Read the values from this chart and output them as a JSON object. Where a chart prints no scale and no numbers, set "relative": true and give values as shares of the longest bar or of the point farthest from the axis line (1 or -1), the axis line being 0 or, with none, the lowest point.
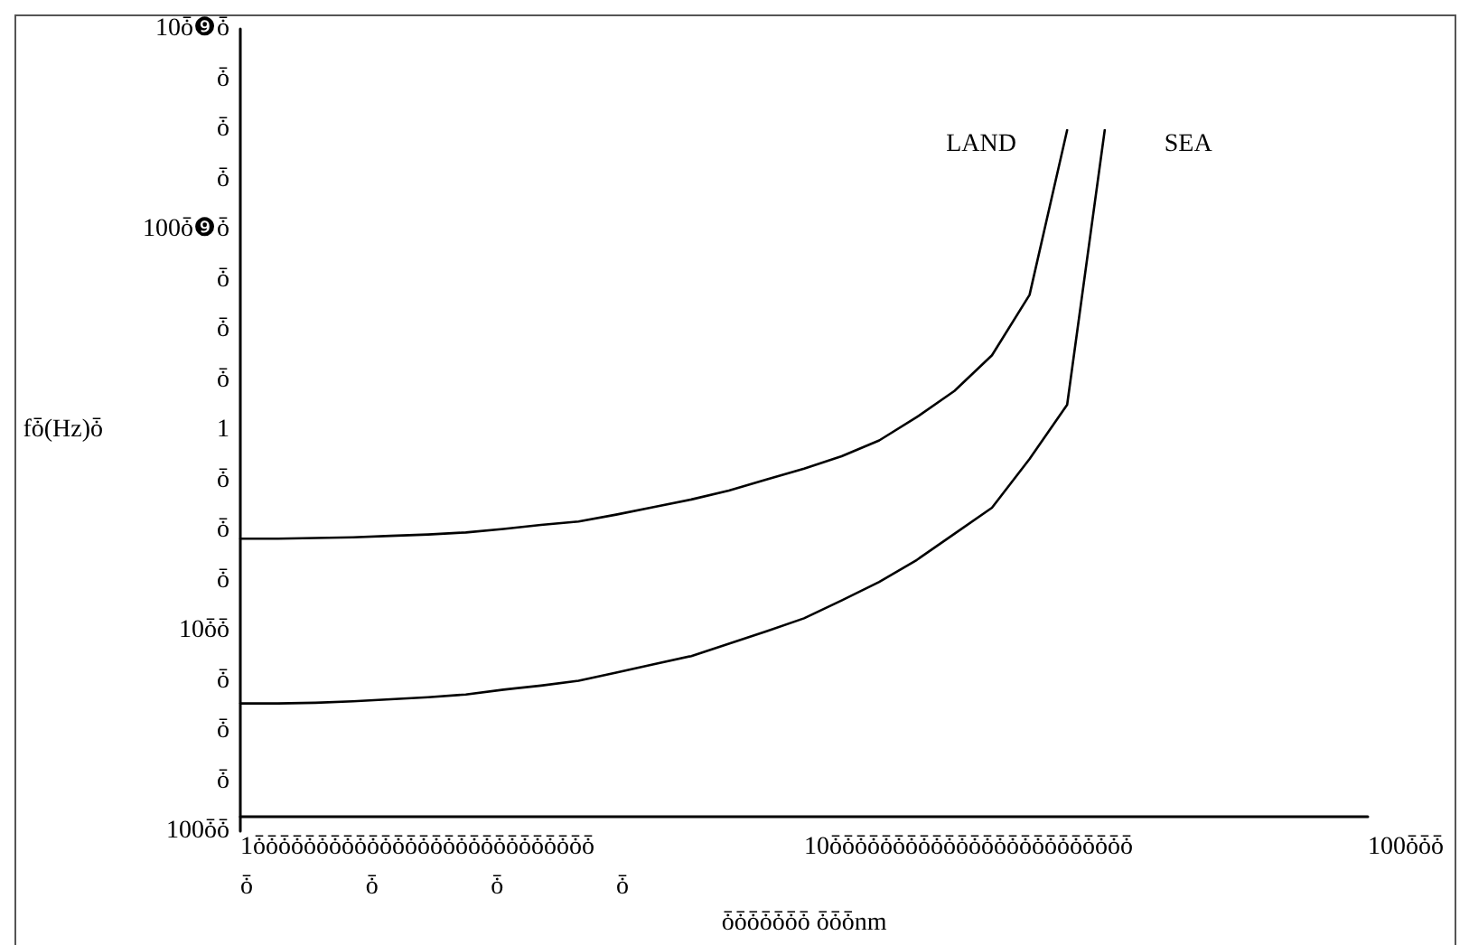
{
  "chart_data": {
    "type": "line",
    "relative": true,
    "xlabel": "ȱȱȱȱȱȱȱ ȱȱȱnm",
    "categories": [
      null,
      null,
      null,
      null,
      null,
      null,
      null,
      null,
      null,
      null,
      null,
      null,
      null,
      null,
      null,
      null,
      null,
      null,
      null,
      null,
      null,
      null,
      null,
      null,
      null,
      null,
      null,
      null,
      null,
      null,
      null
    ],
    "annotations": [
      "fȱ(Hz)ȱ",
      "10ȱ❾ȱ",
      "ȱ",
      "ȱ",
      "ȱ",
      "100ȱ❾ȱ",
      "ȱ",
      "ȱ",
      "ȱ",
      "1",
      "ȱ",
      "ȱ",
      "ȱ",
      "10ȱȱ",
      "ȱ",
      "ȱ",
      "ȱ",
      "100ȱȱ",
      "1ȱȱȱȱȱȱȱȱȱȱȱȱȱȱȱȱȱȱȱȱȱȱȱȱȱȱȱ",
      "10ȱȱȱȱȱȱȱȱȱȱȱȱȱȱȱȱȱȱȱȱȱȱȱȱ",
      "100ȱȱȱ",
      "ȱ",
      "ȱ",
      "ȱ",
      "ȱ"
    ],
    "grid": false,
    "marker": "none",
    "line_style": "solid",
    "series": [
      {
        "name": "LAND",
        "color": "#000000",
        "values": [
          0.405,
          0.405,
          0.406,
          0.407,
          0.409,
          0.411,
          0.414,
          0.419,
          0.425,
          0.43,
          0.44,
          0.451,
          0.462,
          0.475,
          0.491,
          0.507,
          0.525,
          0.548,
          0.582,
          0.62,
          0.672,
          0.76,
          1.0,
          null,
          null,
          null,
          null,
          null,
          null,
          null,
          null
        ]
      },
      {
        "name": "SEA",
        "color": "#000000",
        "values": [
          0.165,
          0.165,
          0.166,
          0.168,
          0.171,
          0.174,
          0.178,
          0.185,
          0.191,
          0.198,
          0.21,
          0.222,
          0.234,
          0.252,
          0.27,
          0.289,
          0.315,
          0.342,
          0.374,
          0.412,
          0.45,
          0.521,
          0.6,
          1.0,
          null,
          null,
          null,
          null,
          null,
          null,
          null
        ]
      }
    ]
  }
}
